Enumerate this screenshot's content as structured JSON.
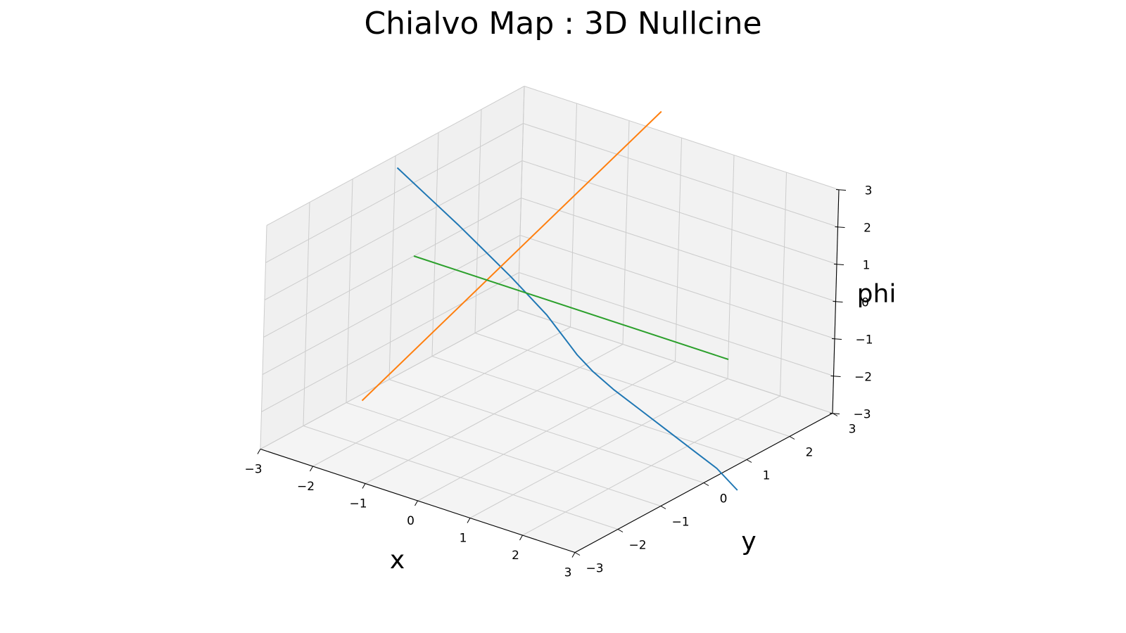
{
  "chart_data": {
    "type": "line",
    "title": "Chialvo Map : 3D Nullcine",
    "xlabel": "x",
    "ylabel": "y",
    "zlabel": "phi",
    "xlim": [
      -3,
      3
    ],
    "ylim": [
      -3,
      3
    ],
    "zlim": [
      -3,
      3
    ],
    "ticks": [
      "−3",
      "−2",
      "−1",
      "0",
      "1",
      "2",
      "3"
    ],
    "grid": true,
    "colors": {
      "series1": "#1f77b4",
      "series2": "#ff7f0e",
      "series3": "#2ca02c",
      "grid": "#cccccc",
      "pane_side": "#f0f0f0",
      "pane_back": "#f2f2f2",
      "pane_floor": "#f4f4f4"
    },
    "series": [
      {
        "points": [
          [
            -3.2,
            0.3,
            2.4
          ],
          [
            -2.6,
            0.3,
            1.9
          ],
          [
            -2.0,
            0.3,
            1.4
          ],
          [
            -1.5,
            0.3,
            0.95
          ],
          [
            -1.0,
            0.3,
            0.5
          ],
          [
            -0.6,
            0.3,
            0.1
          ],
          [
            -0.3,
            0.3,
            -0.2
          ],
          [
            -0.15,
            0.3,
            -0.4
          ],
          [
            0.0,
            0.3,
            -0.6
          ],
          [
            0.15,
            0.3,
            -0.8
          ],
          [
            0.3,
            0.3,
            -1.0
          ],
          [
            0.6,
            0.3,
            -1.3
          ],
          [
            1.0,
            0.3,
            -1.6
          ],
          [
            1.5,
            0.3,
            -1.9
          ],
          [
            2.0,
            0.3,
            -2.2
          ],
          [
            2.5,
            0.3,
            -2.5
          ],
          [
            3.0,
            0.3,
            -2.8
          ],
          [
            3.4,
            0.3,
            -3.2
          ]
        ]
      },
      {
        "points": [
          [
            -3.5,
            0.0,
            -3.8
          ],
          [
            2.0,
            0.0,
            6.5
          ]
        ]
      },
      {
        "points": [
          [
            -3.0,
            0.5,
            0.0
          ],
          [
            3.0,
            0.5,
            0.0
          ]
        ]
      }
    ]
  }
}
